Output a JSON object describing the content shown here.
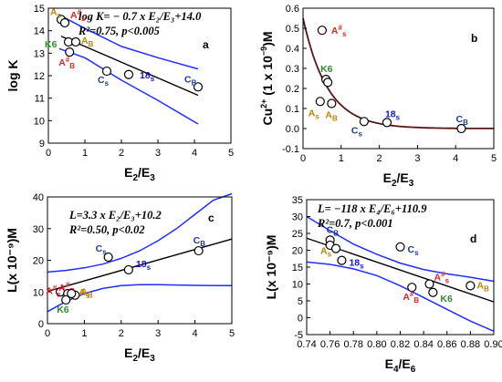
{
  "chart_data": [
    {
      "type": "scatter",
      "panel": "a",
      "ylabel": "log K",
      "xlabel": "E2/E3",
      "xlabel_main": "E",
      "xlabel_sub1": "2",
      "xlabel_sep": "/E",
      "xlabel_sub2": "3",
      "xlim": [
        0,
        5
      ],
      "ylim": [
        9,
        15
      ],
      "xticks": [
        0,
        1,
        2,
        3,
        4,
        5
      ],
      "yticks": [
        9,
        10,
        11,
        12,
        13,
        14,
        15
      ],
      "equation": "log K= − 0.7 x E₂/E₃+14.0",
      "stats": "R²=0.75, p<0.005",
      "points": [
        {
          "label": "As",
          "x": 0.35,
          "y": 14.5,
          "color": "#b8860b"
        },
        {
          "label": "A#s",
          "x": 0.45,
          "y": 14.35,
          "color": "#e4232a"
        },
        {
          "label": "K6",
          "x": 0.55,
          "y": 13.5,
          "color": "#2e8b2e"
        },
        {
          "label": "AB",
          "x": 0.75,
          "y": 13.5,
          "color": "#b8860b"
        },
        {
          "label": "A#B",
          "x": 0.58,
          "y": 13.05,
          "color": "#e4232a"
        },
        {
          "label": "Cs",
          "x": 1.6,
          "y": 12.2,
          "color": "#1f3c99"
        },
        {
          "label": "18s",
          "x": 2.2,
          "y": 12.05,
          "color": "#1515cc"
        },
        {
          "label": "CB",
          "x": 4.1,
          "y": 11.5,
          "color": "#1f3c99"
        }
      ],
      "fit": {
        "slope": -0.7,
        "intercept": 14.0
      },
      "ci_upper": [
        [
          0.3,
          14.7
        ],
        [
          1.0,
          14.1
        ],
        [
          2.0,
          13.3
        ],
        [
          3.0,
          12.8
        ],
        [
          4.1,
          12.3
        ]
      ],
      "ci_lower": [
        [
          0.3,
          13.2
        ],
        [
          1.0,
          12.8
        ],
        [
          2.0,
          11.8
        ],
        [
          3.0,
          10.9
        ],
        [
          4.1,
          9.85
        ]
      ]
    },
    {
      "type": "scatter",
      "panel": "b",
      "ylabel": "Cu2+ (1 x 10⁻⁹)M",
      "ylabel_main": "Cu",
      "ylabel_sup": "2+",
      "ylabel_rest": " (1 x 10",
      "ylabel_exp": "−9",
      "ylabel_end": ")M",
      "xlabel": "E2/E3",
      "xlabel_main": "E",
      "xlabel_sub1": "2",
      "xlabel_sep": "/E",
      "xlabel_sub2": "3",
      "xlim": [
        0,
        5
      ],
      "ylim": [
        -0.1,
        0.6
      ],
      "xticks": [
        0,
        1,
        2,
        3,
        4,
        5
      ],
      "yticks": [
        -0.1,
        0.0,
        0.1,
        0.2,
        0.3,
        0.4,
        0.5,
        0.6
      ],
      "points": [
        {
          "label": "A#s",
          "x": 0.5,
          "y": 0.49,
          "color": "#e4232a"
        },
        {
          "label": "K6",
          "x": 0.6,
          "y": 0.245,
          "color": "#2e8b2e"
        },
        {
          "label": "",
          "x": 0.65,
          "y": 0.23,
          "color": "#000"
        },
        {
          "label": "As",
          "x": 0.45,
          "y": 0.135,
          "color": "#b8860b"
        },
        {
          "label": "AB",
          "x": 0.75,
          "y": 0.125,
          "color": "#b8860b"
        },
        {
          "label": "Cs",
          "x": 1.6,
          "y": 0.035,
          "color": "#1f3c99"
        },
        {
          "label": "18s",
          "x": 2.2,
          "y": 0.03,
          "color": "#1515cc"
        },
        {
          "label": "CB",
          "x": 4.15,
          "y": 0.0,
          "color": "#1f3c99"
        }
      ],
      "curve": {
        "a": 0.55,
        "b": 1.55
      }
    },
    {
      "type": "scatter",
      "panel": "c",
      "ylabel": "L(x 10⁻⁹)M",
      "xlabel": "E2/E3",
      "xlabel_main": "E",
      "xlabel_sub1": "2",
      "xlabel_sep": "/E",
      "xlabel_sub2": "3",
      "xlim": [
        0,
        5
      ],
      "ylim": [
        0,
        40
      ],
      "xticks": [
        0,
        1,
        2,
        3,
        4,
        5
      ],
      "yticks": [
        0,
        10,
        20,
        30,
        40
      ],
      "equation": "L=3.3 x E₂/E₃+10.2",
      "stats": "R²=0.50, p<0.02",
      "points": [
        {
          "label": "A#s",
          "x": 0.35,
          "y": 10.0,
          "color": "#e4232a"
        },
        {
          "label": "A#B",
          "x": 0.55,
          "y": 9.5,
          "color": "#e4232a"
        },
        {
          "label": "AB",
          "x": 0.75,
          "y": 9.0,
          "color": "#b8860b"
        },
        {
          "label": "K6",
          "x": 0.5,
          "y": 7.5,
          "color": "#2e8b2e"
        },
        {
          "label": "As",
          "x": 0.65,
          "y": 9.5,
          "color": "#b8860b"
        },
        {
          "label": "Cs",
          "x": 1.65,
          "y": 21.0,
          "color": "#1f3c99"
        },
        {
          "label": "18s",
          "x": 2.2,
          "y": 17.0,
          "color": "#1515cc"
        },
        {
          "label": "CB",
          "x": 4.1,
          "y": 23.0,
          "color": "#1f3c99"
        }
      ],
      "fit": {
        "slope": 3.3,
        "intercept": 10.2
      },
      "ci_upper": [
        [
          0.0,
          16.3
        ],
        [
          0.5,
          16.8
        ],
        [
          1.0,
          17.6
        ],
        [
          1.5,
          18.8
        ],
        [
          2.0,
          20.6
        ],
        [
          2.5,
          23.0
        ],
        [
          3.0,
          26.2
        ],
        [
          3.5,
          30.0
        ],
        [
          4.0,
          34.5
        ],
        [
          4.5,
          39.0
        ],
        [
          5.0,
          41.0
        ]
      ],
      "ci_lower": [
        [
          0.0,
          3.8
        ],
        [
          0.5,
          7.0
        ],
        [
          1.0,
          9.5
        ],
        [
          1.5,
          11.1
        ],
        [
          2.0,
          12.0
        ],
        [
          2.5,
          12.3
        ],
        [
          3.0,
          12.3
        ],
        [
          3.5,
          12.2
        ],
        [
          4.0,
          12.1
        ],
        [
          4.5,
          12.0
        ],
        [
          5.0,
          12.0
        ]
      ]
    },
    {
      "type": "scatter",
      "panel": "d",
      "ylabel": "L(x 10⁻⁹)M",
      "xlabel": "E4/E6",
      "xlabel_main": "E",
      "xlabel_sub1": "4",
      "xlabel_sep": "/E",
      "xlabel_sub2": "6",
      "xlim": [
        0.74,
        0.9
      ],
      "ylim": [
        -5,
        35
      ],
      "xticks": [
        0.74,
        0.76,
        0.78,
        0.8,
        0.82,
        0.84,
        0.86,
        0.88,
        0.9
      ],
      "xtick_labels": [
        "0.74",
        "0.76",
        "0.78",
        "0.80",
        "0.82",
        "0.84",
        "0.86",
        "0.88",
        "0.90"
      ],
      "yticks": [
        -5,
        0,
        5,
        10,
        15,
        20,
        25,
        30,
        35
      ],
      "equation": "L= −118 x E₄/E₆+110.9",
      "stats": "R²=0.7, p<0.001",
      "points": [
        {
          "label": "CB",
          "x": 0.76,
          "y": 23.0,
          "color": "#1f3c99"
        },
        {
          "label": "",
          "x": 0.76,
          "y": 21.5,
          "color": "#000"
        },
        {
          "label": "As",
          "x": 0.765,
          "y": 20.5,
          "color": "#b8860b"
        },
        {
          "label": "18s",
          "x": 0.77,
          "y": 17.0,
          "color": "#1515cc"
        },
        {
          "label": "Cs",
          "x": 0.82,
          "y": 21.0,
          "color": "#1f3c99"
        },
        {
          "label": "A#B",
          "x": 0.83,
          "y": 9.0,
          "color": "#e4232a"
        },
        {
          "label": "A#s",
          "x": 0.845,
          "y": 10.0,
          "color": "#e4232a"
        },
        {
          "label": "K6",
          "x": 0.848,
          "y": 7.5,
          "color": "#2e8b2e"
        },
        {
          "label": "AB",
          "x": 0.88,
          "y": 9.5,
          "color": "#b8860b"
        }
      ],
      "fit": {
        "slope": -118,
        "intercept": 110.9
      },
      "ci_upper": [
        [
          0.74,
          30.0
        ],
        [
          0.76,
          25.8
        ],
        [
          0.78,
          21.8
        ],
        [
          0.8,
          18.8
        ],
        [
          0.82,
          16.2
        ],
        [
          0.84,
          14.3
        ],
        [
          0.86,
          13.0
        ],
        [
          0.88,
          12.0
        ],
        [
          0.9,
          10.8
        ]
      ],
      "ci_lower": [
        [
          0.74,
          16.5
        ],
        [
          0.76,
          15.8
        ],
        [
          0.78,
          14.5
        ],
        [
          0.8,
          12.5
        ],
        [
          0.82,
          9.5
        ],
        [
          0.84,
          6.0
        ],
        [
          0.86,
          2.5
        ],
        [
          0.88,
          -1.0
        ],
        [
          0.9,
          -4.0
        ]
      ]
    }
  ]
}
